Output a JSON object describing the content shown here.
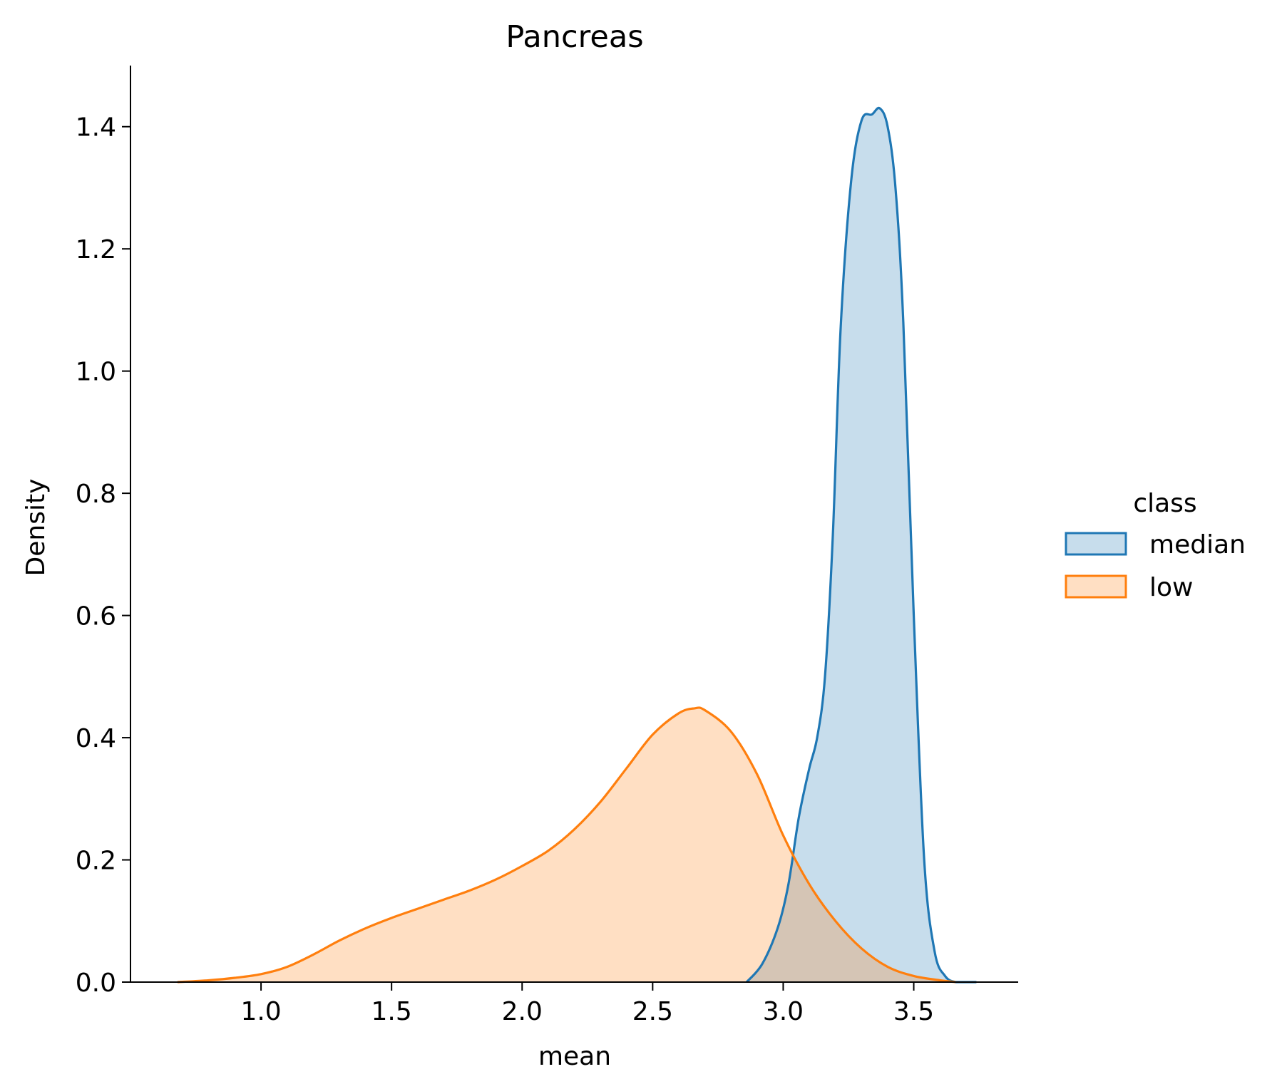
{
  "chart_data": {
    "type": "area",
    "title": "Pancreas",
    "xlabel": "mean",
    "ylabel": "Density",
    "xlim": [
      0.5,
      3.9
    ],
    "ylim": [
      0,
      1.5
    ],
    "xticks": [
      1.0,
      1.5,
      2.0,
      2.5,
      3.0,
      3.5
    ],
    "xtick_labels": [
      "1.0",
      "1.5",
      "2.0",
      "2.5",
      "3.0",
      "3.5"
    ],
    "yticks": [
      0.0,
      0.2,
      0.4,
      0.6,
      0.8,
      1.0,
      1.2,
      1.4
    ],
    "ytick_labels": [
      "0.0",
      "0.2",
      "0.4",
      "0.6",
      "0.8",
      "1.0",
      "1.2",
      "1.4"
    ],
    "grid": false,
    "legend": {
      "title": "class",
      "position": "right"
    },
    "series": [
      {
        "name": "median",
        "color": "#1f77b4",
        "fill": "rgba(31,119,180,0.25)",
        "x": [
          2.86,
          2.92,
          2.98,
          3.02,
          3.06,
          3.1,
          3.13,
          3.16,
          3.19,
          3.22,
          3.26,
          3.3,
          3.34,
          3.37,
          3.4,
          3.43,
          3.46,
          3.5,
          3.54,
          3.58,
          3.62,
          3.66,
          3.7,
          3.74
        ],
        "y": [
          0.0,
          0.03,
          0.09,
          0.16,
          0.27,
          0.35,
          0.4,
          0.5,
          0.73,
          1.07,
          1.31,
          1.41,
          1.42,
          1.43,
          1.4,
          1.3,
          1.08,
          0.6,
          0.2,
          0.05,
          0.01,
          0.0,
          0.0,
          0.0
        ]
      },
      {
        "name": "low",
        "color": "#ff7f0e",
        "fill": "rgba(255,127,14,0.25)",
        "x": [
          0.68,
          0.8,
          0.9,
          1.0,
          1.1,
          1.2,
          1.3,
          1.4,
          1.5,
          1.6,
          1.7,
          1.8,
          1.9,
          2.0,
          2.1,
          2.2,
          2.3,
          2.4,
          2.5,
          2.6,
          2.66,
          2.7,
          2.8,
          2.9,
          3.0,
          3.1,
          3.2,
          3.3,
          3.4,
          3.5,
          3.6,
          3.66
        ],
        "y": [
          0.0,
          0.003,
          0.007,
          0.013,
          0.025,
          0.045,
          0.068,
          0.088,
          0.105,
          0.12,
          0.135,
          0.15,
          0.168,
          0.19,
          0.215,
          0.25,
          0.295,
          0.35,
          0.405,
          0.44,
          0.448,
          0.445,
          0.41,
          0.34,
          0.24,
          0.16,
          0.1,
          0.055,
          0.025,
          0.01,
          0.003,
          0.0
        ]
      }
    ]
  }
}
